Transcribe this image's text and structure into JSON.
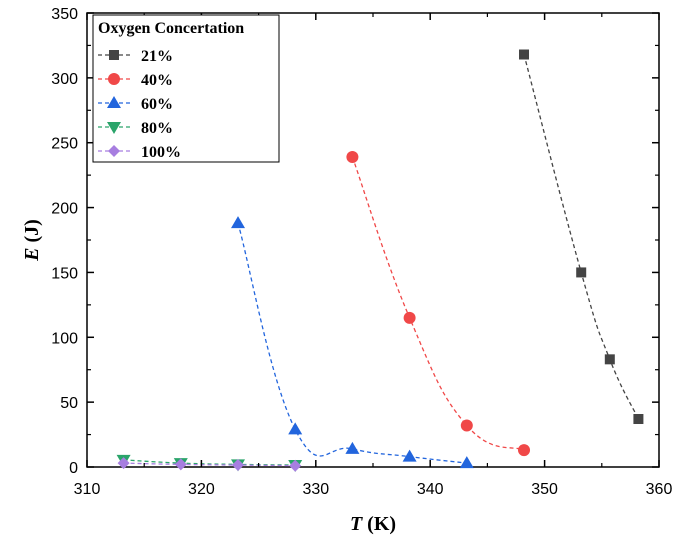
{
  "chart_data": {
    "type": "scatter",
    "title": "",
    "xlabel_symbol": "T",
    "xlabel_unit": " (K)",
    "ylabel_symbol": "E",
    "ylabel_unit": " (J)",
    "xlim": [
      310,
      360
    ],
    "ylim": [
      0,
      350
    ],
    "xticks": [
      310,
      320,
      330,
      340,
      350,
      360
    ],
    "yticks": [
      0,
      50,
      100,
      150,
      200,
      250,
      300,
      350
    ],
    "grid": false,
    "legend": {
      "title": "Oxygen Concertation",
      "placement": "top-left"
    },
    "series": [
      {
        "name": "21%",
        "marker": "square",
        "color": "#444444",
        "x": [
          348.2,
          353.2,
          355.7,
          358.2
        ],
        "y": [
          318,
          150,
          83,
          37
        ]
      },
      {
        "name": "40%",
        "marker": "circle",
        "color": "#f04848",
        "x": [
          333.2,
          338.2,
          343.2,
          348.2
        ],
        "y": [
          239,
          115,
          32,
          13
        ]
      },
      {
        "name": "60%",
        "marker": "triangle-up",
        "color": "#2265dd",
        "x": [
          323.2,
          328.2,
          333.2,
          338.2,
          343.2
        ],
        "y": [
          188,
          29,
          14,
          8,
          3
        ]
      },
      {
        "name": "80%",
        "marker": "triangle-down",
        "color": "#2aa46a",
        "x": [
          313.2,
          318.2,
          323.2,
          328.2
        ],
        "y": [
          5.5,
          3,
          2,
          1.5
        ]
      },
      {
        "name": "100%",
        "marker": "diamond",
        "color": "#a77ee0",
        "x": [
          313.2,
          318.2,
          323.2,
          328.2
        ],
        "y": [
          3,
          2,
          1.5,
          1
        ]
      }
    ]
  }
}
